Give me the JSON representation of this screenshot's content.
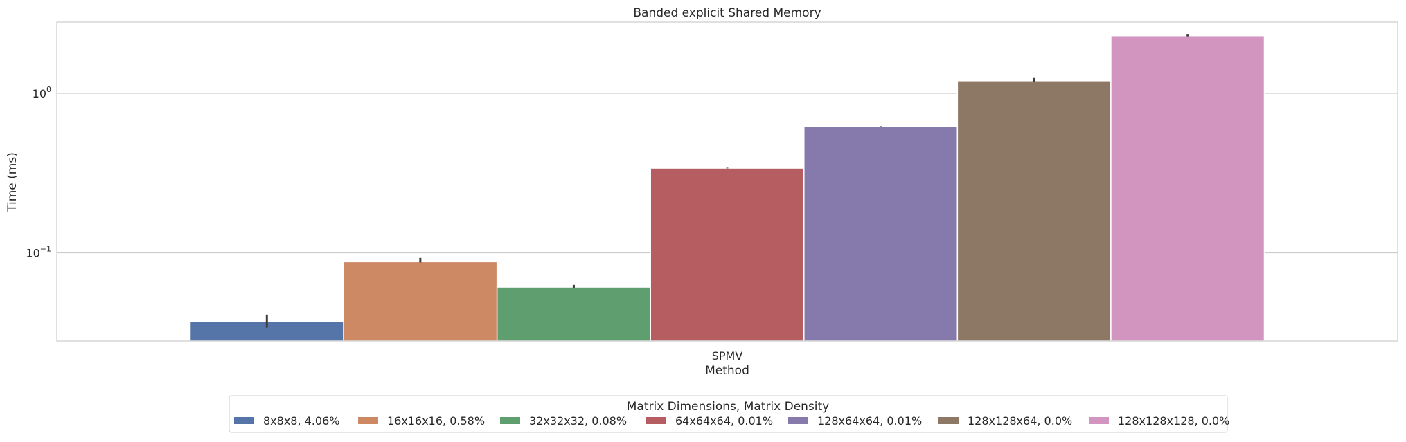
{
  "chart_data": {
    "type": "bar",
    "title": "Banded explicit Shared Memory",
    "xlabel": "Method",
    "ylabel": "Time (ms)",
    "yscale": "log",
    "ylim": [
      0.028,
      2.8
    ],
    "y_ticks": [
      {
        "value": 0.1,
        "base": "10",
        "exp": "−1"
      },
      {
        "value": 1.0,
        "base": "10",
        "exp": "0"
      }
    ],
    "grid": true,
    "categories": [
      "SPMV"
    ],
    "legend": {
      "title": "Matrix Dimensions, Matrix Density",
      "placement": "bottom-center"
    },
    "series": [
      {
        "name": "8x8x8, 4.06%",
        "color": "#5574a8",
        "values": [
          0.037
        ],
        "err_low": [
          0.034
        ],
        "err_high": [
          0.041
        ]
      },
      {
        "name": "16x16x16, 0.58%",
        "color": "#cd8864",
        "values": [
          0.088
        ],
        "err_low": [
          0.087
        ],
        "err_high": [
          0.093
        ]
      },
      {
        "name": "32x32x32, 0.08%",
        "color": "#5f9e6e",
        "values": [
          0.061
        ],
        "err_low": [
          0.06
        ],
        "err_high": [
          0.063
        ]
      },
      {
        "name": "64x64x64, 0.01%",
        "color": "#b55d60",
        "values": [
          0.34
        ],
        "err_low": [
          0.339
        ],
        "err_high": [
          0.342
        ]
      },
      {
        "name": "128x64x64, 0.01%",
        "color": "#857aab",
        "values": [
          0.62
        ],
        "err_low": [
          0.618
        ],
        "err_high": [
          0.623
        ]
      },
      {
        "name": "128x128x64, 0.0%",
        "color": "#8d7866",
        "values": [
          1.2
        ],
        "err_low": [
          1.18
        ],
        "err_high": [
          1.25
        ]
      },
      {
        "name": "128x128x128, 0.0%",
        "color": "#d195bf",
        "values": [
          2.3
        ],
        "err_low": [
          2.28
        ],
        "err_high": [
          2.36
        ]
      }
    ]
  }
}
